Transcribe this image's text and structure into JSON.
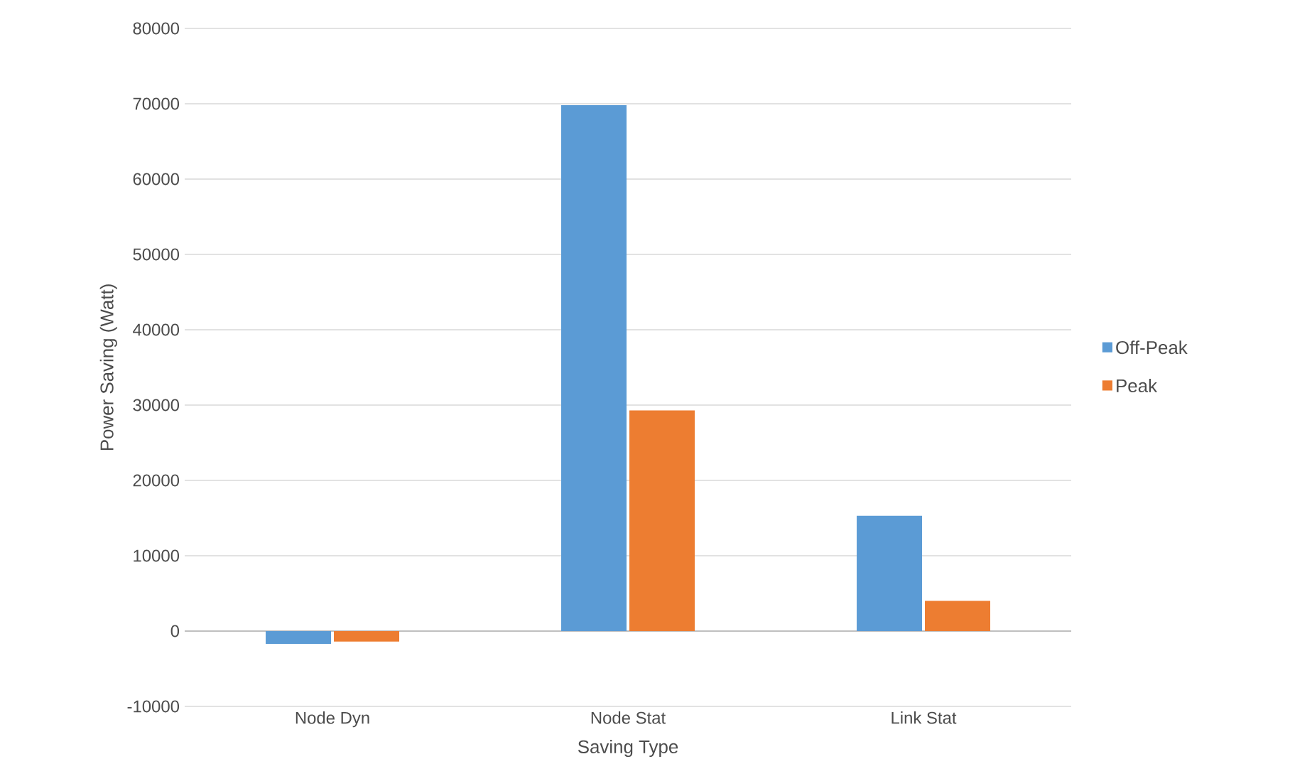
{
  "chart_data": {
    "type": "bar",
    "xlabel": "Saving Type",
    "ylabel": "Power Saving (Watt)",
    "categories": [
      "Node Dyn",
      "Node Stat",
      "Link Stat"
    ],
    "series": [
      {
        "name": "Off-Peak",
        "color": "#5b9bd5",
        "values": [
          -1700,
          69800,
          15300
        ]
      },
      {
        "name": "Peak",
        "color": "#ed7d31",
        "values": [
          -1400,
          29300,
          4000
        ]
      }
    ],
    "ylim": [
      -10000,
      80000
    ],
    "yticks": [
      -10000,
      0,
      10000,
      20000,
      30000,
      40000,
      50000,
      60000,
      70000,
      80000
    ],
    "grid": "y",
    "legend": "right"
  }
}
